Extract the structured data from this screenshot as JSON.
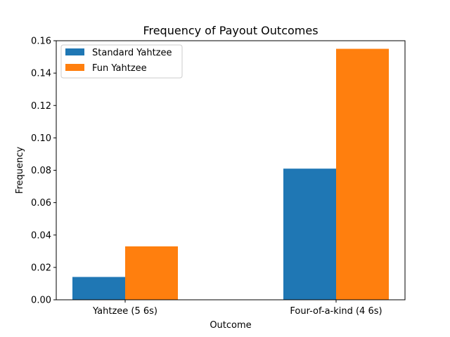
{
  "chart_data": {
    "type": "bar",
    "title": "Frequency of Payout Outcomes",
    "xlabel": "Outcome",
    "ylabel": "Frequency",
    "categories": [
      "Yahtzee (5 6s)",
      "Four-of-a-kind (4 6s)"
    ],
    "series": [
      {
        "name": "Standard Yahtzee",
        "color": "#1f77b4",
        "values": [
          0.0141,
          0.081
        ]
      },
      {
        "name": "Fun Yahtzee",
        "color": "#ff7f0e",
        "values": [
          0.033,
          0.155
        ]
      }
    ],
    "ylim": [
      0,
      0.16
    ],
    "yticks": [
      "0.00",
      "0.02",
      "0.04",
      "0.06",
      "0.08",
      "0.10",
      "0.12",
      "0.14",
      "0.16"
    ],
    "grid": false,
    "legend": "top-left"
  }
}
